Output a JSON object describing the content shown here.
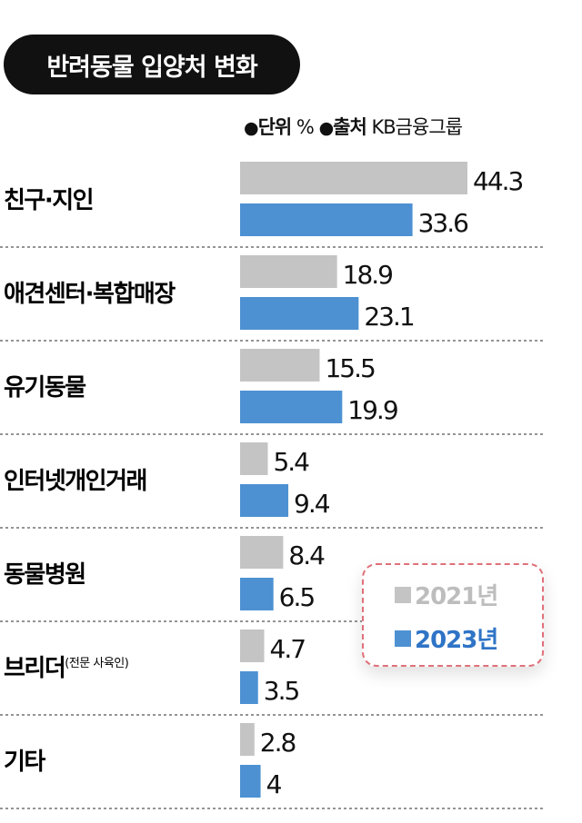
{
  "title": "반려동물 입양처 변화",
  "meta": {
    "unit_label": "단위",
    "unit_value": "%",
    "source_label": "출처",
    "source_value": "KB금융그룹"
  },
  "colors": {
    "2021": "#c4c4c4",
    "2023": "#4d91d2",
    "legend_2021_text": "#bdbdbd",
    "legend_2023_text": "#2f74c6",
    "legend_border": "#e0707a"
  },
  "chart_data": {
    "type": "bar",
    "orientation": "horizontal",
    "categories": [
      "친구·지인",
      "애견센터·복합매장",
      "유기동물",
      "인터넷개인거래",
      "동물병원",
      "브리더",
      "기타"
    ],
    "category_notes": [
      "",
      "",
      "",
      "",
      "",
      "(전문 사육인)",
      ""
    ],
    "series": [
      {
        "name": "2021년",
        "values": [
          44.3,
          18.9,
          15.5,
          5.4,
          8.4,
          4.7,
          2.8
        ],
        "labels": [
          "44.3",
          "18.9",
          "15.5",
          "5.4",
          "8.4",
          "4.7",
          "2.8"
        ]
      },
      {
        "name": "2023년",
        "values": [
          33.6,
          23.1,
          19.9,
          9.4,
          6.5,
          3.5,
          4.0
        ],
        "labels": [
          "33.6",
          "23.1",
          "19.9",
          "9.4",
          "6.5",
          "3.5",
          "4"
        ]
      }
    ],
    "legend": "inside, lower-right"
  }
}
